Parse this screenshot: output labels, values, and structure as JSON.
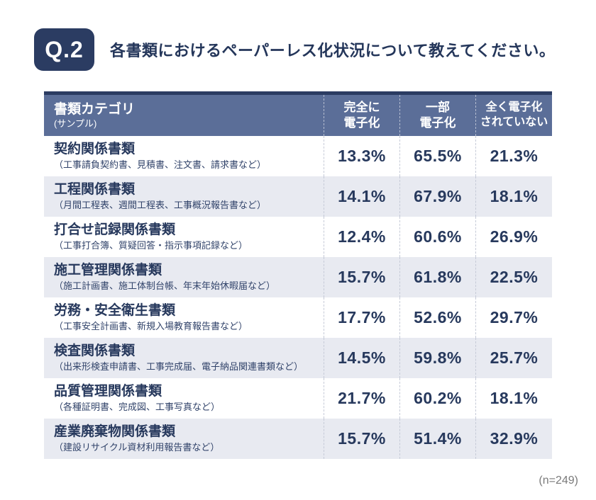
{
  "question": {
    "badge": "Q.2",
    "text": "各書類におけるペーパーレス化状況について教えてください。"
  },
  "table": {
    "header": {
      "category_title": "書類カテゴリ",
      "category_sub": "(サンプル)",
      "col_full_line1": "完全に",
      "col_full_line2": "電子化",
      "col_partial_line1": "一部",
      "col_partial_line2": "電子化",
      "col_none_line1": "全く電子化",
      "col_none_line2": "されていない"
    },
    "rows": [
      {
        "category": "契約関係書類",
        "sample": "（工事請負契約書、見積書、注文書、請求書など）",
        "full": "13.3%",
        "partial": "65.5%",
        "none": "21.3%"
      },
      {
        "category": "工程関係書類",
        "sample": "（月間工程表、週間工程表、工事概況報告書など）",
        "full": "14.1%",
        "partial": "67.9%",
        "none": "18.1%"
      },
      {
        "category": "打合せ記録関係書類",
        "sample": "（工事打合簿、質疑回答・指示事項記録など）",
        "full": "12.4%",
        "partial": "60.6%",
        "none": "26.9%"
      },
      {
        "category": "施工管理関係書類",
        "sample": "（施工計画書、施工体制台帳、年末年始休暇届など）",
        "full": "15.7%",
        "partial": "61.8%",
        "none": "22.5%"
      },
      {
        "category": "労務・安全衛生書類",
        "sample": "（工事安全計画書、新規入場教育報告書など）",
        "full": "17.7%",
        "partial": "52.6%",
        "none": "29.7%"
      },
      {
        "category": "検査関係書類",
        "sample": "（出来形検査申請書、工事完成届、電子納品関連書類など）",
        "full": "14.5%",
        "partial": "59.8%",
        "none": "25.7%"
      },
      {
        "category": "品質管理関係書類",
        "sample": "（各種証明書、完成図、工事写真など）",
        "full": "21.7%",
        "partial": "60.2%",
        "none": "18.1%"
      },
      {
        "category": "産業廃棄物関係書類",
        "sample": "（建設リサイクル資材利用報告書など）",
        "full": "15.7%",
        "partial": "51.4%",
        "none": "32.9%"
      }
    ]
  },
  "footnote": "(n=249)",
  "colors": {
    "navy": "#2b3c62",
    "header_bg": "#5b6e98",
    "alt_row_bg": "#e8eaf1",
    "text_navy": "#27395d",
    "footnote_gray": "#7a7a7a"
  },
  "chart_data": {
    "type": "table",
    "title": "各書類におけるペーパーレス化状況について教えてください。",
    "categories": [
      "契約関係書類",
      "工程関係書類",
      "打合せ記録関係書類",
      "施工管理関係書類",
      "労務・安全衛生書類",
      "検査関係書類",
      "品質管理関係書類",
      "産業廃棄物関係書類"
    ],
    "series": [
      {
        "name": "完全に電子化",
        "values": [
          13.3,
          14.1,
          12.4,
          15.7,
          17.7,
          14.5,
          21.7,
          15.7
        ]
      },
      {
        "name": "一部電子化",
        "values": [
          65.5,
          67.9,
          60.6,
          61.8,
          52.6,
          59.8,
          60.2,
          51.4
        ]
      },
      {
        "name": "全く電子化されていない",
        "values": [
          21.3,
          18.1,
          26.9,
          22.5,
          29.7,
          25.7,
          18.1,
          32.9
        ]
      }
    ],
    "unit": "%",
    "sample_size": 249
  }
}
